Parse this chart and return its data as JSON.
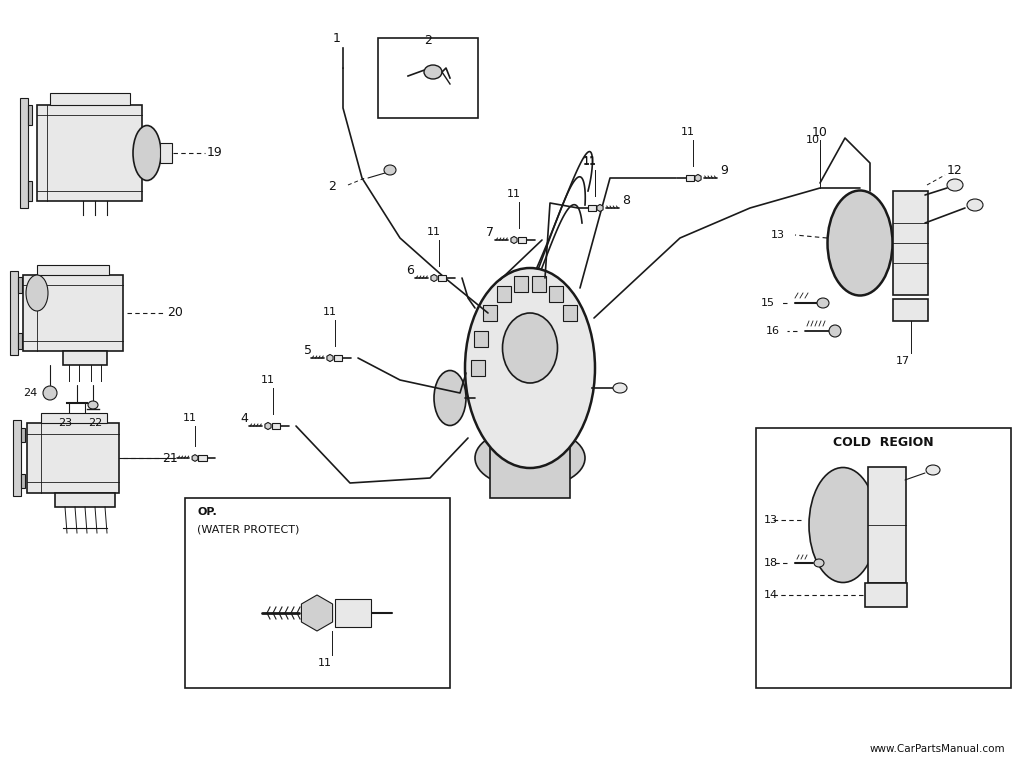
{
  "bg_color": "#ffffff",
  "line_color": "#1a1a1a",
  "label_color": "#111111",
  "website": "www.CarPartsManual.com",
  "fig_w": 10.24,
  "fig_h": 7.68,
  "xlim": [
    0,
    1024
  ],
  "ylim": [
    0,
    768
  ]
}
